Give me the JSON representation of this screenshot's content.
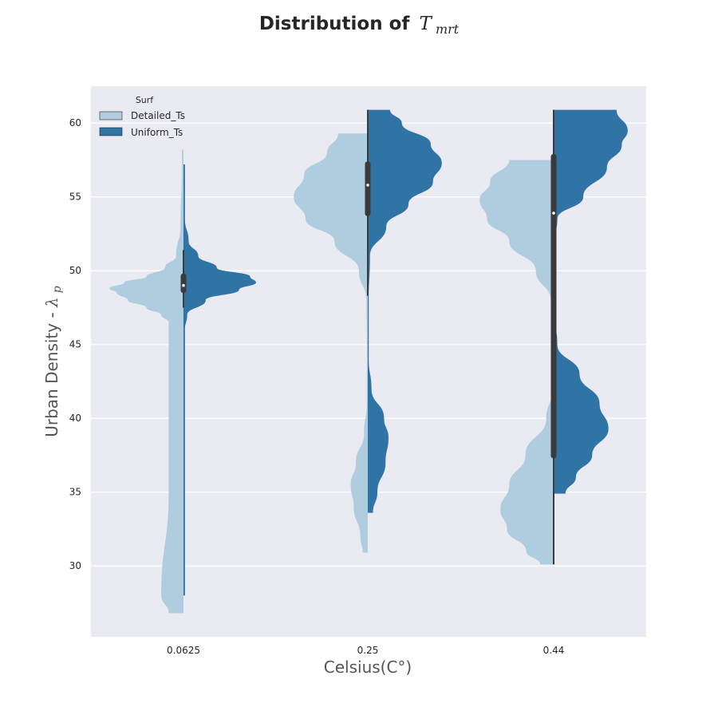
{
  "chart_data": {
    "type": "violin",
    "split": true,
    "title": {
      "prefix": "Distribution of",
      "symbol": "T",
      "subscript": "mrt"
    },
    "xlabel": "Celsius(C°)",
    "ylabel": {
      "prefix": "Urban Density - ",
      "symbol": "λ",
      "subscript": "p"
    },
    "categories": [
      "0.0625",
      "0.25",
      "0.44"
    ],
    "ylim": [
      25.2,
      62.5
    ],
    "yticks": [
      30,
      35,
      40,
      45,
      50,
      55,
      60
    ],
    "grid": "horizontal",
    "background_color": "#eaeaf2",
    "legend": {
      "title": "Surf",
      "position": "top-left",
      "entries": [
        {
          "label": "Detailed_Ts",
          "color": "#afcddf"
        },
        {
          "label": "Uniform_Ts",
          "color": "#2f74a5"
        }
      ]
    },
    "series": [
      {
        "name": "Detailed_Ts",
        "side": "left",
        "color": "#afcddf",
        "violins": [
          {
            "category": "0.0625",
            "range": [
              26.8,
              58.2
            ],
            "profile": [
              [
                26.8,
                0.2
              ],
              [
                28,
                0.3
              ],
              [
                35,
                0.2
              ],
              [
                46.5,
                0.2
              ],
              [
                47,
                0.3
              ],
              [
                47.5,
                0.5
              ],
              [
                48.0,
                0.75
              ],
              [
                48.5,
                0.9
              ],
              [
                48.8,
                1.0
              ],
              [
                49.2,
                0.8
              ],
              [
                49.6,
                0.5
              ],
              [
                50.2,
                0.25
              ],
              [
                51,
                0.1
              ],
              [
                53,
                0.04
              ],
              [
                57,
                0.02
              ],
              [
                58.2,
                0.02
              ]
            ]
          },
          {
            "category": "0.25",
            "range": [
              30.9,
              59.3
            ],
            "profile": [
              [
                30.9,
                0.07
              ],
              [
                32,
                0.1
              ],
              [
                34,
                0.19
              ],
              [
                35.5,
                0.23
              ],
              [
                37,
                0.16
              ],
              [
                39,
                0.05
              ],
              [
                41,
                0.01
              ],
              [
                45,
                0.0
              ],
              [
                48,
                0.02
              ],
              [
                50,
                0.12
              ],
              [
                52,
                0.45
              ],
              [
                53.5,
                0.84
              ],
              [
                55,
                1.0
              ],
              [
                56.5,
                0.86
              ],
              [
                58,
                0.55
              ],
              [
                59.3,
                0.4
              ]
            ]
          },
          {
            "category": "0.44",
            "range": [
              30.1,
              57.5
            ],
            "profile": [
              [
                30.1,
                0.18
              ],
              [
                31,
                0.37
              ],
              [
                32.5,
                0.63
              ],
              [
                33.8,
                0.72
              ],
              [
                35.5,
                0.6
              ],
              [
                37.5,
                0.38
              ],
              [
                40,
                0.1
              ],
              [
                42,
                0.0
              ],
              [
                46,
                0.0
              ],
              [
                48,
                0.04
              ],
              [
                50,
                0.24
              ],
              [
                52,
                0.6
              ],
              [
                53.5,
                0.9
              ],
              [
                54.8,
                1.0
              ],
              [
                56,
                0.86
              ],
              [
                57.5,
                0.6
              ]
            ]
          }
        ]
      },
      {
        "name": "Uniform_Ts",
        "side": "right",
        "color": "#2f74a5",
        "violins": [
          {
            "category": "0.0625",
            "range": [
              28,
              57.2
            ],
            "profile": [
              [
                28,
                0.02
              ],
              [
                35,
                0.02
              ],
              [
                46,
                0.02
              ],
              [
                47,
                0.05
              ],
              [
                48,
                0.3
              ],
              [
                48.7,
                0.75
              ],
              [
                49.2,
                0.98
              ],
              [
                49.6,
                0.9
              ],
              [
                50.2,
                0.45
              ],
              [
                51,
                0.2
              ],
              [
                52,
                0.07
              ],
              [
                53.5,
                0.02
              ],
              [
                55,
                0.02
              ],
              [
                57.2,
                0.02
              ]
            ]
          },
          {
            "category": "0.25",
            "range": [
              33.6,
              60.9
            ],
            "profile": [
              [
                33.6,
                0.07
              ],
              [
                35,
                0.13
              ],
              [
                37,
                0.24
              ],
              [
                38.7,
                0.28
              ],
              [
                40,
                0.22
              ],
              [
                42,
                0.05
              ],
              [
                44,
                0.01
              ],
              [
                48,
                0.0
              ],
              [
                51,
                0.03
              ],
              [
                53,
                0.25
              ],
              [
                54.5,
                0.55
              ],
              [
                56,
                0.88
              ],
              [
                57.3,
                1.0
              ],
              [
                58.6,
                0.85
              ],
              [
                60,
                0.46
              ],
              [
                60.9,
                0.3
              ]
            ]
          },
          {
            "category": "0.44",
            "range": [
              34.9,
              60.9
            ],
            "profile": [
              [
                34.9,
                0.16
              ],
              [
                36,
                0.3
              ],
              [
                37.5,
                0.52
              ],
              [
                39.3,
                0.74
              ],
              [
                41,
                0.62
              ],
              [
                43,
                0.35
              ],
              [
                45,
                0.05
              ],
              [
                47,
                0.0
              ],
              [
                52,
                0.0
              ],
              [
                53.5,
                0.05
              ],
              [
                55,
                0.4
              ],
              [
                57,
                0.72
              ],
              [
                58.5,
                0.92
              ],
              [
                59.5,
                1.0
              ],
              [
                60.9,
                0.85
              ]
            ]
          }
        ]
      }
    ],
    "boxplots": [
      {
        "category": "0.0625",
        "whisker": [
          47.5,
          51.4
        ],
        "iqr": [
          48.5,
          49.8
        ],
        "median": 49.0
      },
      {
        "category": "0.25",
        "whisker": [
          48.3,
          60.9
        ],
        "iqr": [
          53.7,
          57.4
        ],
        "median": 55.8
      },
      {
        "category": "0.44",
        "whisker": [
          30.1,
          60.9
        ],
        "iqr": [
          37.3,
          57.9
        ],
        "median": 53.9
      }
    ]
  }
}
